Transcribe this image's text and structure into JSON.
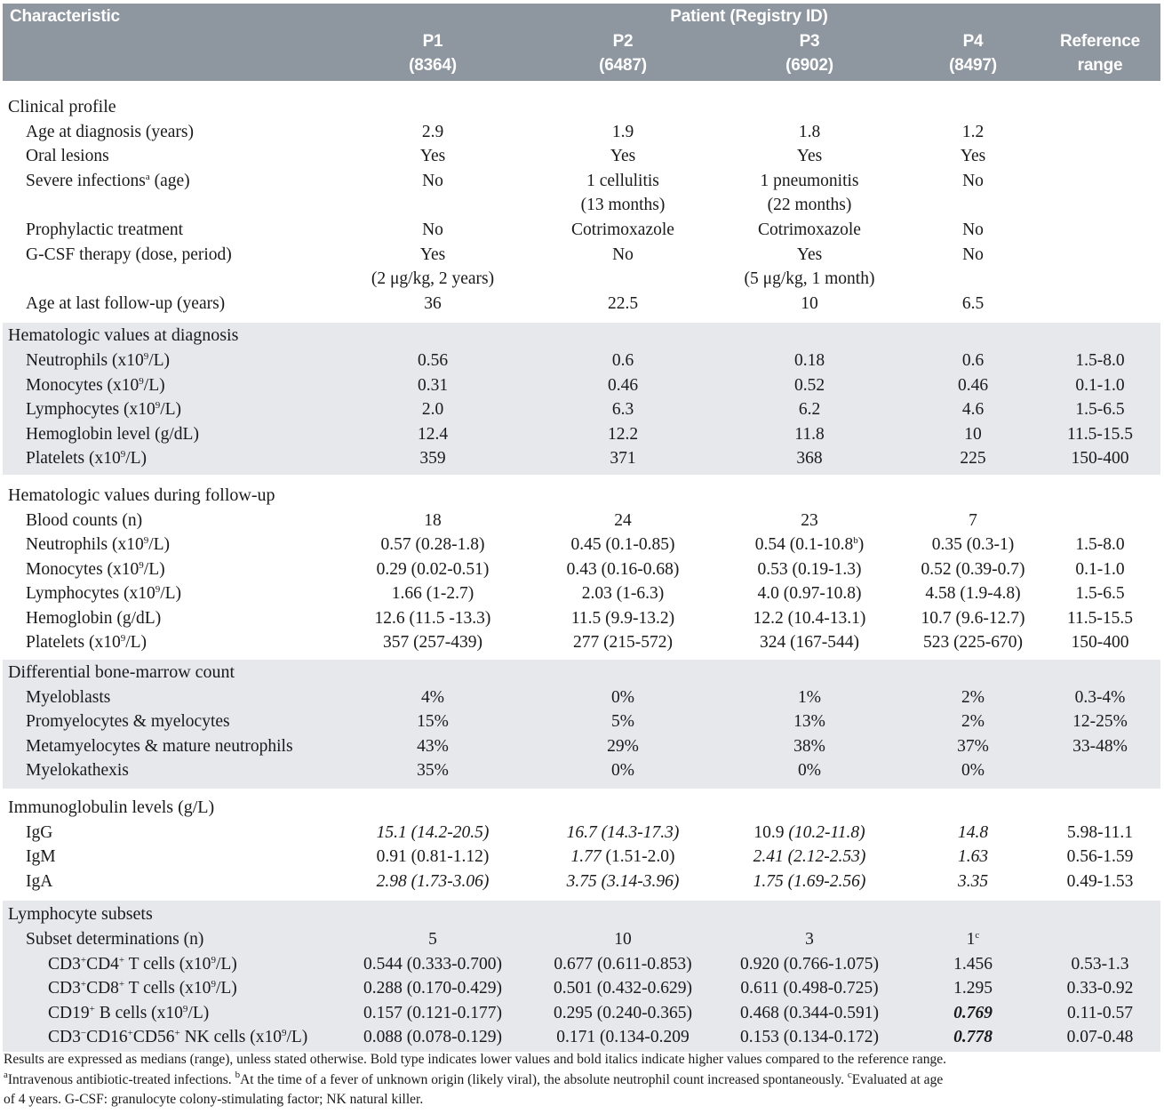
{
  "header": {
    "characteristic": "Characteristic",
    "patient_group": "Patient (Registry ID)",
    "p1": "P1",
    "p1_id": "(8364)",
    "p2": "P2",
    "p2_id": "(6487)",
    "p3": "P3",
    "p3_id": "(6902)",
    "p4": "P4",
    "p4_id": "(8497)",
    "ref1": "Reference",
    "ref2": "range"
  },
  "clinical": {
    "title": "Clinical profile",
    "age_dx": {
      "label": "Age at diagnosis (years)",
      "p1": "2.9",
      "p2": "1.9",
      "p3": "1.8",
      "p4": "1.2"
    },
    "oral": {
      "label": "Oral lesions",
      "p1": "Yes",
      "p2": "Yes",
      "p3": "Yes",
      "p4": "Yes"
    },
    "infections": {
      "label": "Severe infections",
      "sup": "a",
      "label_tail": " (age)",
      "p1": "No",
      "p2": "1 cellulitis",
      "p2b": "(13 months)",
      "p3": "1 pneumonitis",
      "p3b": "(22 months)",
      "p4": "No"
    },
    "prophylactic": {
      "label": "Prophylactic treatment",
      "p1": "No",
      "p2": "Cotrimoxazole",
      "p3": "Cotrimoxazole",
      "p4": "No"
    },
    "gcsf": {
      "label": "G-CSF therapy (dose, period)",
      "p1": "Yes",
      "p1b": "(2 μg/kg, 2 years)",
      "p2": "No",
      "p3": "Yes",
      "p3b": "(5 μg/kg, 1 month)",
      "p4": "No"
    },
    "age_last": {
      "label": "Age at last follow-up (years)",
      "p1": "36",
      "p2": "22.5",
      "p3": "10",
      "p4": "6.5"
    }
  },
  "heme_dx": {
    "title": "Hematologic values at diagnosis",
    "rows": [
      {
        "label": "Neutrophils (x10",
        "unit": "/L)",
        "p1": "0.56",
        "p2": "0.6",
        "p3": "0.18",
        "p4": "0.6",
        "ref": "1.5-8.0"
      },
      {
        "label": "Monocytes (x10",
        "unit": "/L)",
        "p1": "0.31",
        "p2": "0.46",
        "p3": "0.52",
        "p4": "0.46",
        "ref": "0.1-1.0"
      },
      {
        "label": "Lymphocytes (x10",
        "unit": "/L)",
        "p1": "2.0",
        "p2": "6.3",
        "p3": "6.2",
        "p4": "4.6",
        "ref": "1.5-6.5"
      },
      {
        "label": "Hemoglobin level (g/dL)",
        "unit": "",
        "p1": "12.4",
        "p2": "12.2",
        "p3": "11.8",
        "p4": "10",
        "ref": "11.5-15.5"
      },
      {
        "label": "Platelets (x10",
        "unit": "/L)",
        "p1": "359",
        "p2": "371",
        "p3": "368",
        "p4": "225",
        "ref": "150-400"
      }
    ],
    "exp": "9"
  },
  "heme_fu": {
    "title": "Hematologic values during follow-up",
    "counts": {
      "label": "Blood counts (n)",
      "p1": "18",
      "p2": "24",
      "p3": "23",
      "p4": "7"
    },
    "neut": {
      "label": "Neutrophils (x10",
      "unit": "/L)",
      "p1": "0.57 (0.28-1.8)",
      "p2": "0.45 (0.1-0.85)",
      "p3": "0.54 (0.1-10.8",
      "p3sup": "b",
      "p3tail": ")",
      "p4": "0.35 (0.3-1)",
      "ref": "1.5-8.0"
    },
    "mono": {
      "label": "Monocytes (x10",
      "unit": "/L)",
      "p1": "0.29 (0.02-0.51)",
      "p2": "0.43 (0.16-0.68)",
      "p3": "0.53 (0.19-1.3)",
      "p4": "0.52 (0.39-0.7)",
      "ref": "0.1-1.0"
    },
    "lymph": {
      "label": "Lymphocytes (x10",
      "unit": "/L)",
      "p1": "1.66 (1-2.7)",
      "p2": "2.03 (1-6.3)",
      "p3": "4.0 (0.97-10.8)",
      "p4": "4.58 (1.9-4.8)",
      "ref": "1.5-6.5"
    },
    "hgb": {
      "label": "Hemoglobin (g/dL)",
      "p1": "12.6 (11.5 -13.3)",
      "p2": "11.5 (9.9-13.2)",
      "p3": "12.2 (10.4-13.1)",
      "p4": "10.7 (9.6-12.7)",
      "ref": "11.5-15.5"
    },
    "plt": {
      "label": "Platelets (x10",
      "unit": "/L)",
      "p1": "357 (257-439)",
      "p2": "277 (215-572)",
      "p3": "324 (167-544)",
      "p4": "523 (225-670)",
      "ref": "150-400"
    }
  },
  "marrow": {
    "title": "Differential bone-marrow count",
    "rows": [
      {
        "label": "Myeloblasts",
        "p1": "4%",
        "p2": "0%",
        "p3": "1%",
        "p4": "2%",
        "ref": "0.3-4%"
      },
      {
        "label": "Promyelocytes & myelocytes",
        "p1": "15%",
        "p2": "5%",
        "p3": "13%",
        "p4": "2%",
        "ref": "12-25%"
      },
      {
        "label": "Metamyelocytes & mature neutrophils",
        "p1": "43%",
        "p2": "29%",
        "p3": "38%",
        "p4": "37%",
        "ref": "33-48%"
      },
      {
        "label": "Myelokathexis",
        "p1": "35%",
        "p2": "0%",
        "p3": "0%",
        "p4": "0%",
        "ref": ""
      }
    ]
  },
  "ig": {
    "title": "Immunoglobulin levels (g/L)",
    "igg": {
      "label": "IgG",
      "p1": "15.1 (14.2-20.5)",
      "p2": "16.7 (14.3-17.3)",
      "p3a": "10.9 ",
      "p3b": "(10.2-11.8)",
      "p4": "14.8",
      "ref": "5.98-11.1"
    },
    "igm": {
      "label": "IgM",
      "p1": "0.91 (0.81-1.12)",
      "p2a": "1.77",
      "p2b": " (1.51-2.0)",
      "p3": "2.41 (2.12-2.53)",
      "p4": "1.63",
      "ref": "0.56-1.59"
    },
    "iga": {
      "label": "IgA",
      "p1": "2.98 (1.73-3.06)",
      "p2": "3.75 (3.14-3.96)",
      "p3": "1.75 (1.69-2.56)",
      "p4": "3.35",
      "ref": "0.49-1.53"
    }
  },
  "lymph_subsets": {
    "title": "Lymphocyte subsets",
    "det": {
      "label": "Subset determinations (n)",
      "p1": "5",
      "p2": "10",
      "p3": "3",
      "p4": "1",
      "p4sup": "c"
    },
    "cd4": {
      "label_a": "CD3",
      "label_b": "CD4",
      "label_c": " T cells (x10",
      "unit": "/L)",
      "p1": "0.544 (0.333-0.700)",
      "p2": "0.677 (0.611-0.853)",
      "p3": "0.920 (0.766-1.075)",
      "p4": "1.456",
      "ref": "0.53-1.3"
    },
    "cd8": {
      "label_a": "CD3",
      "label_b": "CD8",
      "label_c": " T cells (x10",
      "unit": "/L)",
      "p1": "0.288 (0.170-0.429)",
      "p2": "0.501 (0.432-0.629)",
      "p3": "0.611 (0.498-0.725)",
      "p4": "1.295",
      "ref": "0.33-0.92"
    },
    "cd19": {
      "label_a": "CD19",
      "label_c": " B cells (x10",
      "unit": "/L)",
      "p1": "0.157 (0.121-0.177)",
      "p2": "0.295 (0.240-0.365)",
      "p3": "0.468 (0.344-0.591)",
      "p4": "0.769",
      "ref": "0.11-0.57"
    },
    "nk": {
      "label_a": "CD3",
      "sup_a": "−",
      "label_b": "CD16",
      "label_c": "CD56",
      "label_d": " NK cells (x10",
      "unit": "/L)",
      "p1": "0.088 (0.078-0.129)",
      "p2": "0.171 (0.134-0.209",
      "p3": "0.153 (0.134-0.172)",
      "p4": "0.778",
      "ref": "0.07-0.48"
    },
    "plus": "+"
  },
  "footnote": {
    "line1": "Results are expressed as medians (range), unless stated otherwise. Bold type indicates lower values and bold italics indicate higher values compared to the reference range.",
    "a_sup": "a",
    "a_text": "Intravenous antibiotic-treated infections. ",
    "b_sup": "b",
    "b_text": "At the time of a fever of unknown origin (likely viral), the absolute neutrophil count increased spontaneously. ",
    "c_sup": "c",
    "c_text": "Evaluated at age",
    "line3": "of 4 years. G-CSF: granulocyte colony-stimulating factor; NK natural killer."
  }
}
